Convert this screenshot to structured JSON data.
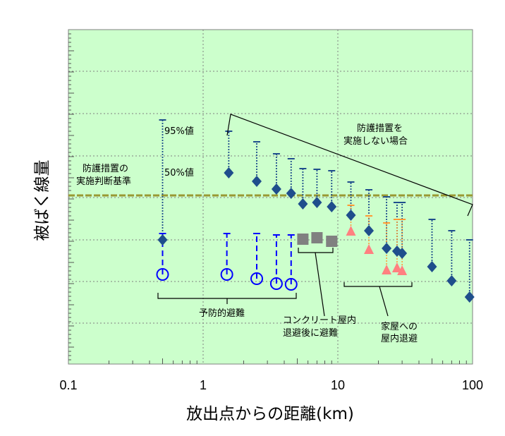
{
  "chart_data": {
    "type": "scatter",
    "title": "",
    "xlabel": "放出点からの距離(km)",
    "ylabel": "被ばく線量",
    "x_scale": "log",
    "xlim": [
      0.1,
      100
    ],
    "x_tick_labels": [
      {
        "value": 0.1,
        "label": "0.1"
      },
      {
        "value": 1,
        "label": "1"
      },
      {
        "value": 10,
        "label": "10"
      },
      {
        "value": 100,
        "label": "100"
      }
    ],
    "y_tick_labels": [],
    "grid": true,
    "colors": {
      "plot_background": "#ccffcc",
      "grid": "#808080",
      "no_protection": "#1f4e8c",
      "preventive_evacuation": "#0000ff",
      "concrete_sheltering": "#808080",
      "house_sheltering": "#ff8080",
      "house_whisker": "#ff9933",
      "criterion_line": "#999933"
    },
    "series": [
      {
        "key": "no_protection",
        "marker": "diamond",
        "points": [
          {
            "x": 0.5,
            "y": 340,
            "y95": 170
          },
          {
            "x": 1.55,
            "y": 245,
            "y95": 186
          },
          {
            "x": 2.5,
            "y": 257,
            "y95": 201
          },
          {
            "x": 3.5,
            "y": 268,
            "y95": 218
          },
          {
            "x": 4.5,
            "y": 274,
            "y95": 225
          },
          {
            "x": 5.5,
            "y": 289,
            "y95": 239
          },
          {
            "x": 7,
            "y": 287,
            "y95": 240
          },
          {
            "x": 9,
            "y": 293,
            "y95": 242
          },
          {
            "x": 12.5,
            "y": 305,
            "y95": 258
          },
          {
            "x": 17,
            "y": 327,
            "y95": 269
          },
          {
            "x": 23,
            "y": 352,
            "y95": 279
          },
          {
            "x": 27.5,
            "y": 356,
            "y95": 287
          },
          {
            "x": 30,
            "y": 359,
            "y95": 287
          },
          {
            "x": 50,
            "y": 378,
            "y95": 311
          },
          {
            "x": 70,
            "y": 398,
            "y95": 327
          },
          {
            "x": 95,
            "y": 421,
            "y95": 340
          }
        ]
      },
      {
        "key": "preventive_evacuation",
        "marker": "circle",
        "points": [
          {
            "x": 0.5,
            "y": 389,
            "y95": 331
          },
          {
            "x": 1.5,
            "y": 389,
            "y95": 331
          },
          {
            "x": 2.5,
            "y": 395,
            "y95": 331
          },
          {
            "x": 3.5,
            "y": 402,
            "y95": 333
          },
          {
            "x": 4.5,
            "y": 403,
            "y95": 333
          }
        ]
      },
      {
        "key": "concrete_sheltering",
        "marker": "square",
        "points": [
          {
            "x": 5.5,
            "y": 339
          },
          {
            "x": 7,
            "y": 337
          },
          {
            "x": 9,
            "y": 342
          }
        ]
      },
      {
        "key": "house_sheltering",
        "marker": "triangle",
        "points": [
          {
            "x": 12.5,
            "y": 328,
            "y95": 291
          },
          {
            "x": 17,
            "y": 354,
            "y95": 306
          },
          {
            "x": 23,
            "y": 383,
            "y95": 316
          },
          {
            "x": 27.5,
            "y": 380,
            "y95": 311
          },
          {
            "x": 30,
            "y": 384,
            "y95": 311
          }
        ]
      }
    ],
    "criterion_y": 277,
    "annotations": {
      "criterion": [
        "防護措置の",
        "実施判断基準"
      ],
      "p95": "95%値",
      "p50": "50%値",
      "no_protection": [
        "防護措置を",
        "実施しない場合"
      ],
      "preventive": "予防的避難",
      "concrete": [
        "コンクリート屋内",
        "退避後に避難"
      ],
      "house": [
        "家屋への",
        "屋内退避"
      ]
    }
  }
}
